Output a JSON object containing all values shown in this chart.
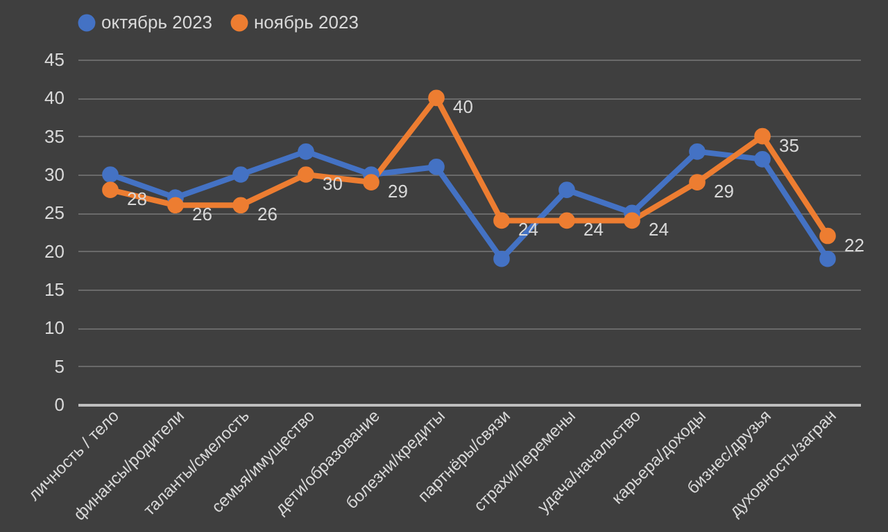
{
  "chart_data": {
    "type": "line",
    "categories": [
      "личность / тело",
      "финансы/родители",
      "таланты/смелость",
      "семья/имущество",
      "дети/образование",
      "болезни/кредиты",
      "партнёры/связи",
      "страхи/перемены",
      "удача/начальство",
      "карьера/доходы",
      "бизнес/друзья",
      "духовность/загран"
    ],
    "series": [
      {
        "name": "октябрь 2023",
        "color": "#4472c4",
        "values": [
          30,
          27,
          30,
          33,
          30,
          31,
          19,
          28,
          25,
          33,
          32,
          19
        ]
      },
      {
        "name": "ноябрь 2023",
        "color": "#ed7d31",
        "values": [
          28,
          26,
          26,
          30,
          29,
          40,
          24,
          24,
          24,
          29,
          35,
          22
        ],
        "value_labels": [
          "28",
          "26",
          "26",
          "30",
          "29",
          "40",
          "24",
          "24",
          "24",
          "29",
          "35",
          "22"
        ]
      }
    ],
    "ylim": [
      0,
      45
    ],
    "yticks": [
      0,
      5,
      10,
      15,
      20,
      25,
      30,
      35,
      40,
      45
    ],
    "grid": "y",
    "legend": "top",
    "marker": "circle",
    "line_style": "solid"
  }
}
